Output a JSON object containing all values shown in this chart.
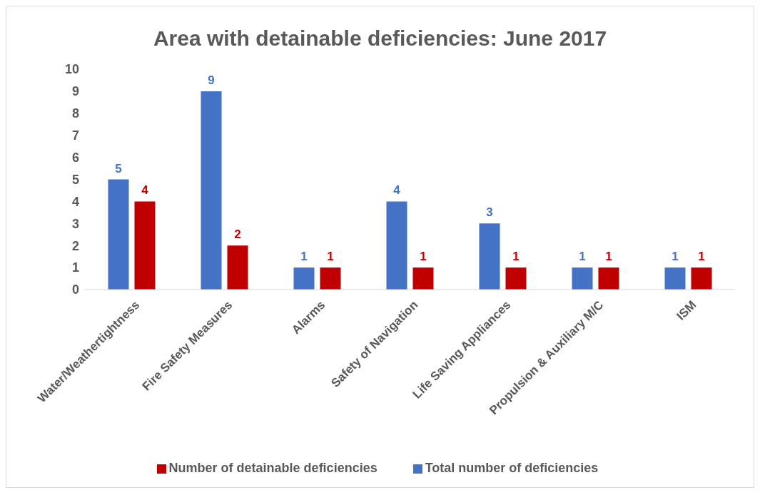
{
  "chart_data": {
    "type": "bar",
    "title": "Area with detainable deficiencies: June 2017",
    "categories": [
      "Water/Weathertightness",
      "Fire Safety Measures",
      "Alarms",
      "Safety of Navigation",
      "Life Saving Appliances",
      "Propulsion & Auxiliary M/C",
      "ISM"
    ],
    "series": [
      {
        "name": "Total number of deficiencies",
        "color": "#4472c4",
        "values": [
          5,
          9,
          1,
          4,
          3,
          1,
          1
        ]
      },
      {
        "name": "Number of detainable deficiencies",
        "color": "#c00000",
        "values": [
          4,
          2,
          1,
          1,
          1,
          1,
          1
        ]
      }
    ],
    "ylim": [
      0,
      10
    ],
    "yticks": [
      0,
      1,
      2,
      3,
      4,
      5,
      6,
      7,
      8,
      9,
      10
    ],
    "grid": false,
    "legend": "bottom",
    "data_labels": true
  }
}
